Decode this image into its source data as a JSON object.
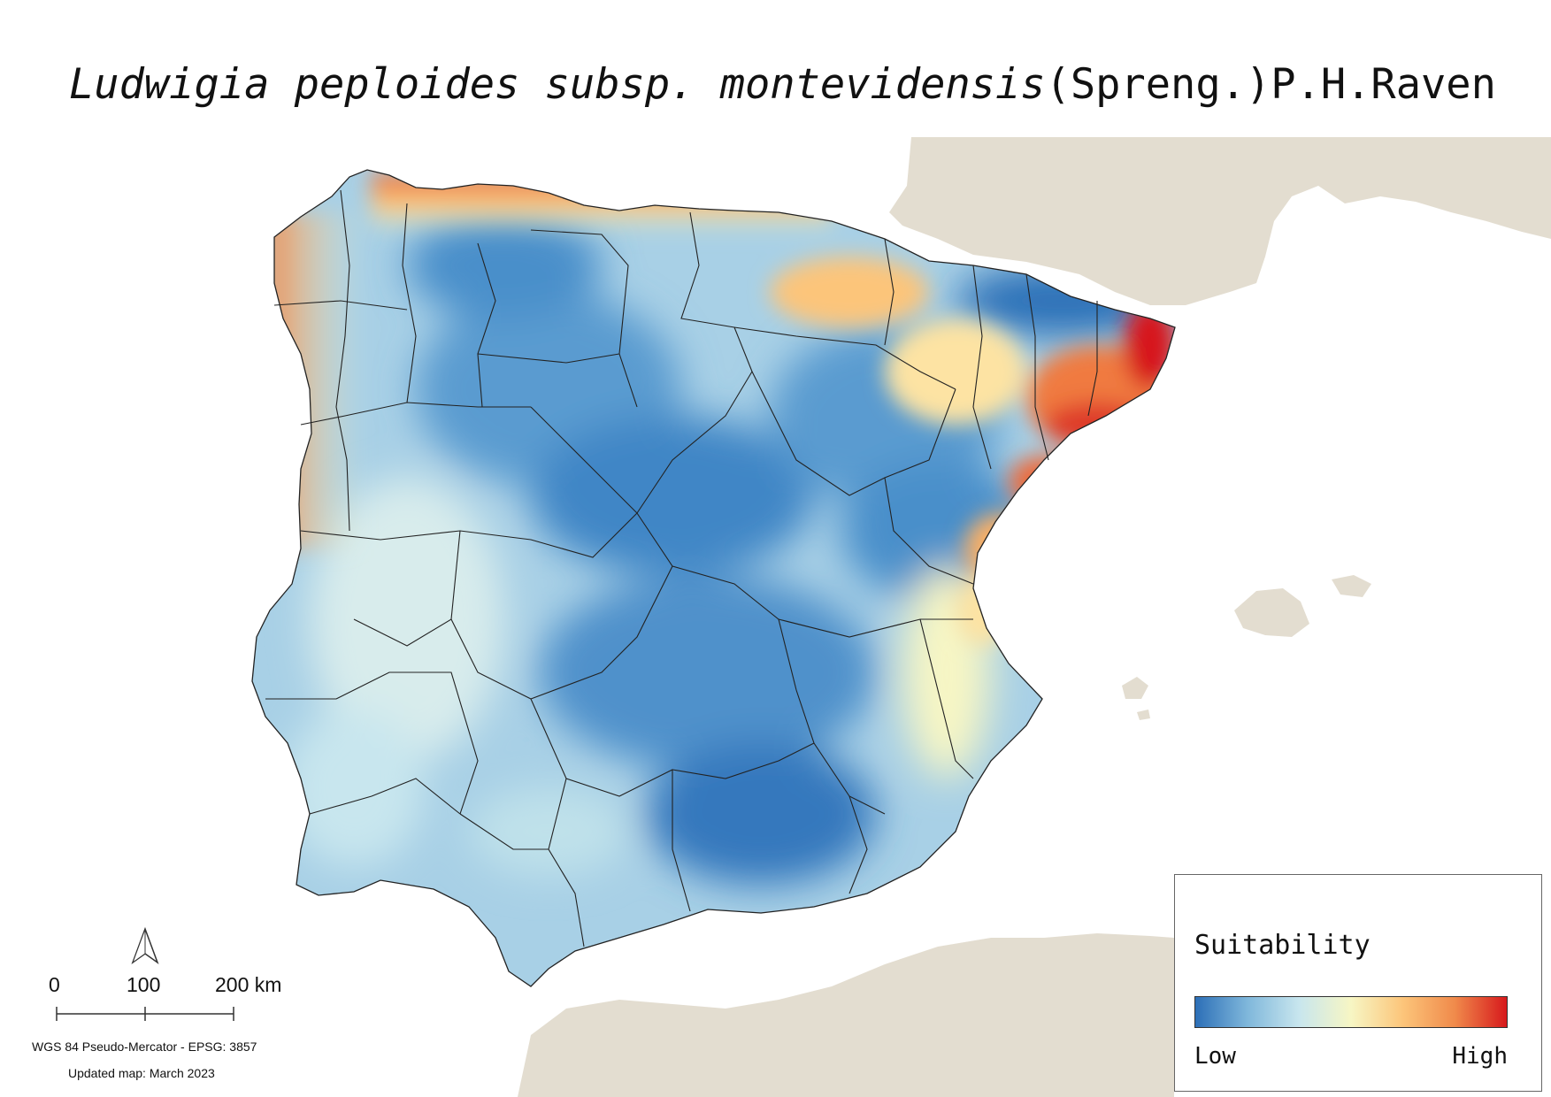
{
  "title": {
    "species": "Ludwigia peploides subsp. montevidensis",
    "authority": "(Spreng.)P.H.Raven"
  },
  "legend": {
    "title": "Suitability",
    "low_label": "Low",
    "high_label": "High",
    "ramp_colors": [
      "#2c6fb7",
      "#7fb7db",
      "#c8e6ee",
      "#f7f6c4",
      "#fcc57a",
      "#f08a4b",
      "#d7191c"
    ]
  },
  "scalebar": {
    "ticks": [
      "0",
      "100",
      "200 km"
    ]
  },
  "crs_note": "WGS 84 Pseudo-Mercator  - EPSG: 3857",
  "updated_note": "Updated map: March 2023",
  "colors": {
    "land_background": "#e3ddd0",
    "sea": "#ffffff",
    "province_lines": "#222222"
  },
  "icons": {
    "north_arrow": "north-arrow-icon"
  }
}
